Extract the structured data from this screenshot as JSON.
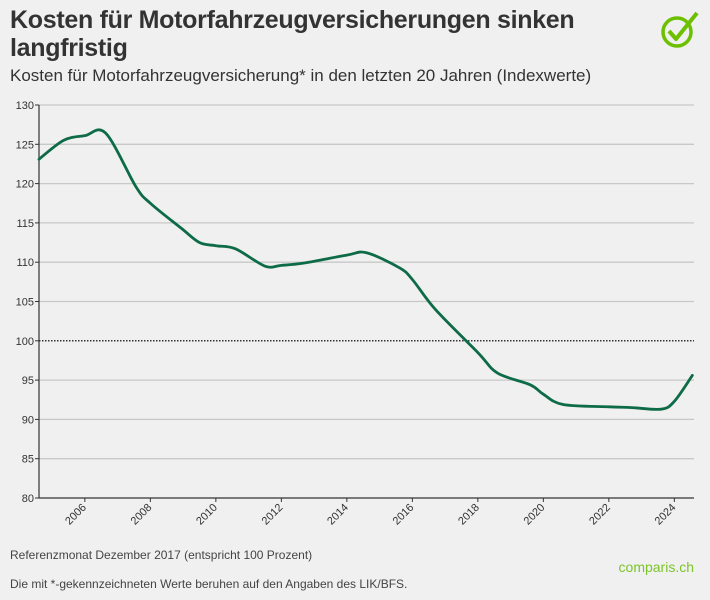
{
  "header": {
    "title": "Kosten für Motorfahrzeugversicherungen sinken langfristig",
    "subtitle": "Kosten für Motorfahrzeugversicherung* in den letzten 20 Jahren (Indexwerte)"
  },
  "footer": {
    "reference_note": "Referenzmonat Dezember 2017 (entspricht 100 Prozent)",
    "source_note": "Die mit *-gekennzeichneten Werte beruhen auf den Angaben des LIK/BFS.",
    "brand": "comparis.ch"
  },
  "colors": {
    "line": "#0e6b47",
    "brand": "#6cc000",
    "reference_line": "#333333",
    "grid": "#c8c8c8"
  },
  "logo_icon": "check-circle-icon",
  "chart_data": {
    "type": "line",
    "title": "Kosten für Motorfahrzeugversicherung* in den letzten 20 Jahren (Indexwerte)",
    "xlabel": "",
    "ylabel": "",
    "xlim": [
      2004.6,
      2024.6
    ],
    "ylim": [
      80,
      130
    ],
    "x_ticks": [
      "2006",
      "2008",
      "2010",
      "2012",
      "2014",
      "2016",
      "2018",
      "2020",
      "2022",
      "2024"
    ],
    "y_ticks": [
      "80",
      "85",
      "90",
      "95",
      "100",
      "105",
      "110",
      "115",
      "120",
      "125",
      "130"
    ],
    "grid": true,
    "reference_line": 100,
    "x": [
      2004.6,
      2005.35,
      2006,
      2006.64,
      2007.56,
      2008,
      2008.95,
      2009.5,
      2010,
      2010.6,
      2011.5,
      2012,
      2012.7,
      2014,
      2014.6,
      2015.6,
      2016,
      2016.7,
      2018,
      2018.6,
      2019.6,
      2020,
      2020.6,
      2022,
      2022.7,
      2023.6,
      2024,
      2024.55
    ],
    "y": [
      123.1,
      125.5,
      126.1,
      126.4,
      119.6,
      117.5,
      114.3,
      112.5,
      112.1,
      111.7,
      109.5,
      109.6,
      109.9,
      110.9,
      111.2,
      109.3,
      107.8,
      104.0,
      98.5,
      95.9,
      94.4,
      93.2,
      91.9,
      91.6,
      91.5,
      91.3,
      92.3,
      95.6
    ]
  }
}
